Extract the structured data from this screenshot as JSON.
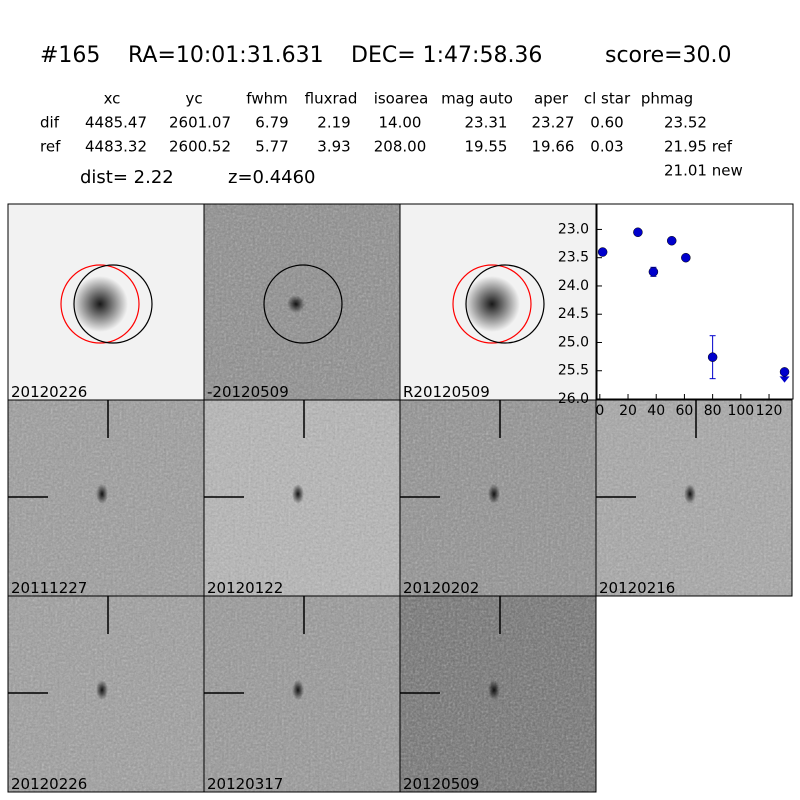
{
  "header": {
    "id": "#165",
    "ra": "RA=10:01:31.631",
    "dec": "DEC= 1:47:58.36",
    "score": "score=30.0"
  },
  "table": {
    "columns": [
      "xc",
      "yc",
      "fwhm",
      "fluxrad",
      "isoarea",
      "mag auto",
      "aper",
      "cl star",
      "phmag"
    ],
    "rows": [
      [
        "dif",
        "4485.47",
        "2601.07",
        "6.79",
        "2.19",
        "14.00",
        "23.31",
        "23.27",
        "0.60",
        "23.52"
      ],
      [
        "ref",
        "4483.32",
        "2600.52",
        "5.77",
        "3.93",
        "208.00",
        "19.55",
        "19.66",
        "0.03",
        "21.95 ref"
      ]
    ],
    "extra": "21.01 new"
  },
  "dist": "dist=  2.22",
  "z": "z=0.4460",
  "stamps": [
    {
      "label": "20120226"
    },
    {
      "label": "-20120509"
    },
    {
      "label": "R20120509"
    },
    {
      "label": "20111227"
    },
    {
      "label": "20120122"
    },
    {
      "label": "20120202"
    },
    {
      "label": "20120216"
    },
    {
      "label": "20120226",
      "color": "#ff0000"
    },
    {
      "label": "20120317"
    },
    {
      "label": "20120509"
    }
  ],
  "chart_data": {
    "type": "scatter",
    "color": "#0000cc",
    "x": [
      2,
      27,
      38,
      51,
      61,
      80,
      131
    ],
    "values": [
      23.4,
      23.05,
      23.75,
      23.2,
      23.5,
      25.26,
      25.52
    ],
    "errors": [
      0.05,
      0.03,
      0.08,
      0.05,
      0.05,
      0.38,
      null
    ],
    "upper_limits": [
      false,
      false,
      false,
      false,
      false,
      false,
      true
    ],
    "xlim": [
      -2,
      137
    ],
    "ylim": [
      26.0,
      22.55
    ],
    "xticks": [
      0,
      20,
      40,
      60,
      80,
      100,
      120
    ],
    "yticks": [
      {
        "value": 23.0,
        "label": "23.0"
      },
      {
        "value": 23.5,
        "label": "23.5"
      },
      {
        "value": 24.0,
        "label": "24.0"
      },
      {
        "value": 24.5,
        "label": "24.5"
      },
      {
        "value": 25.0,
        "label": "25.0"
      },
      {
        "value": 25.5,
        "label": "25.5"
      },
      {
        "value": 26.0,
        "label": "26.0"
      }
    ]
  }
}
